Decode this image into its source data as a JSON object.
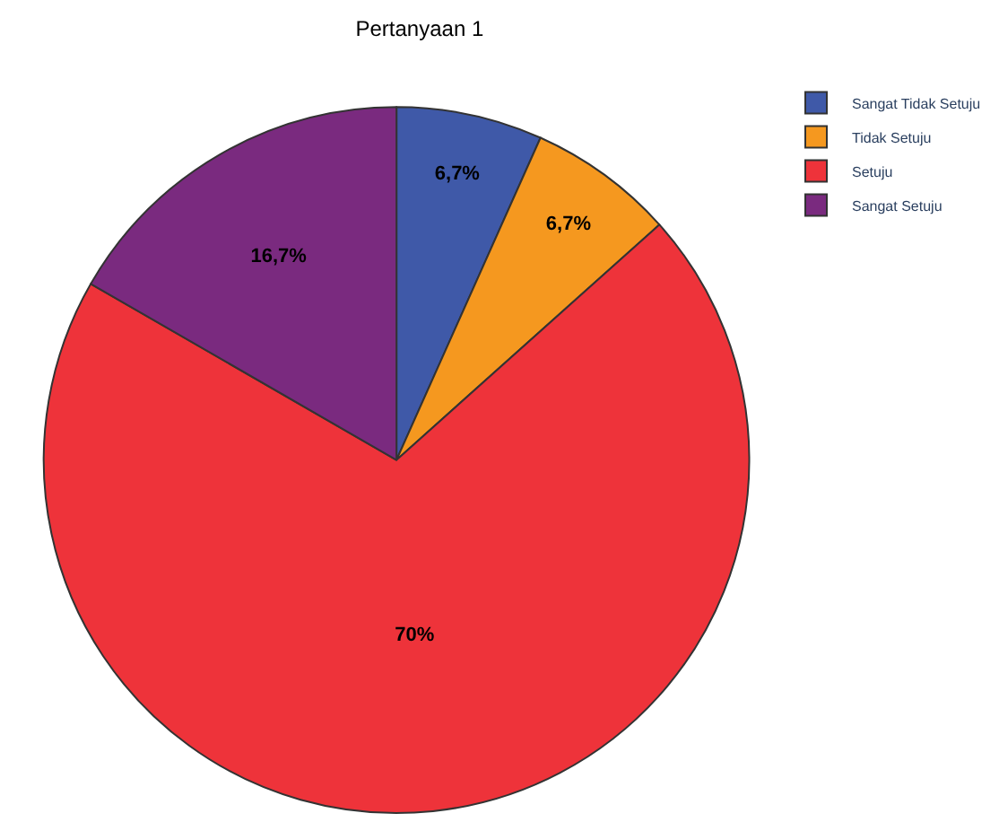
{
  "chart_data": {
    "type": "pie",
    "title": "Pertanyaan 1",
    "categories": [
      "Sangat Tidak Setuju",
      "Tidak Setuju",
      "Setuju",
      "Sangat Setuju"
    ],
    "values": [
      6.7,
      6.7,
      70,
      16.7
    ],
    "value_labels": [
      "6,7%",
      "6,7%",
      "70%",
      "16,7%"
    ],
    "colors": [
      "#3f59a8",
      "#f5981f",
      "#ee333a",
      "#7a2a7f"
    ],
    "legend": "top right"
  }
}
